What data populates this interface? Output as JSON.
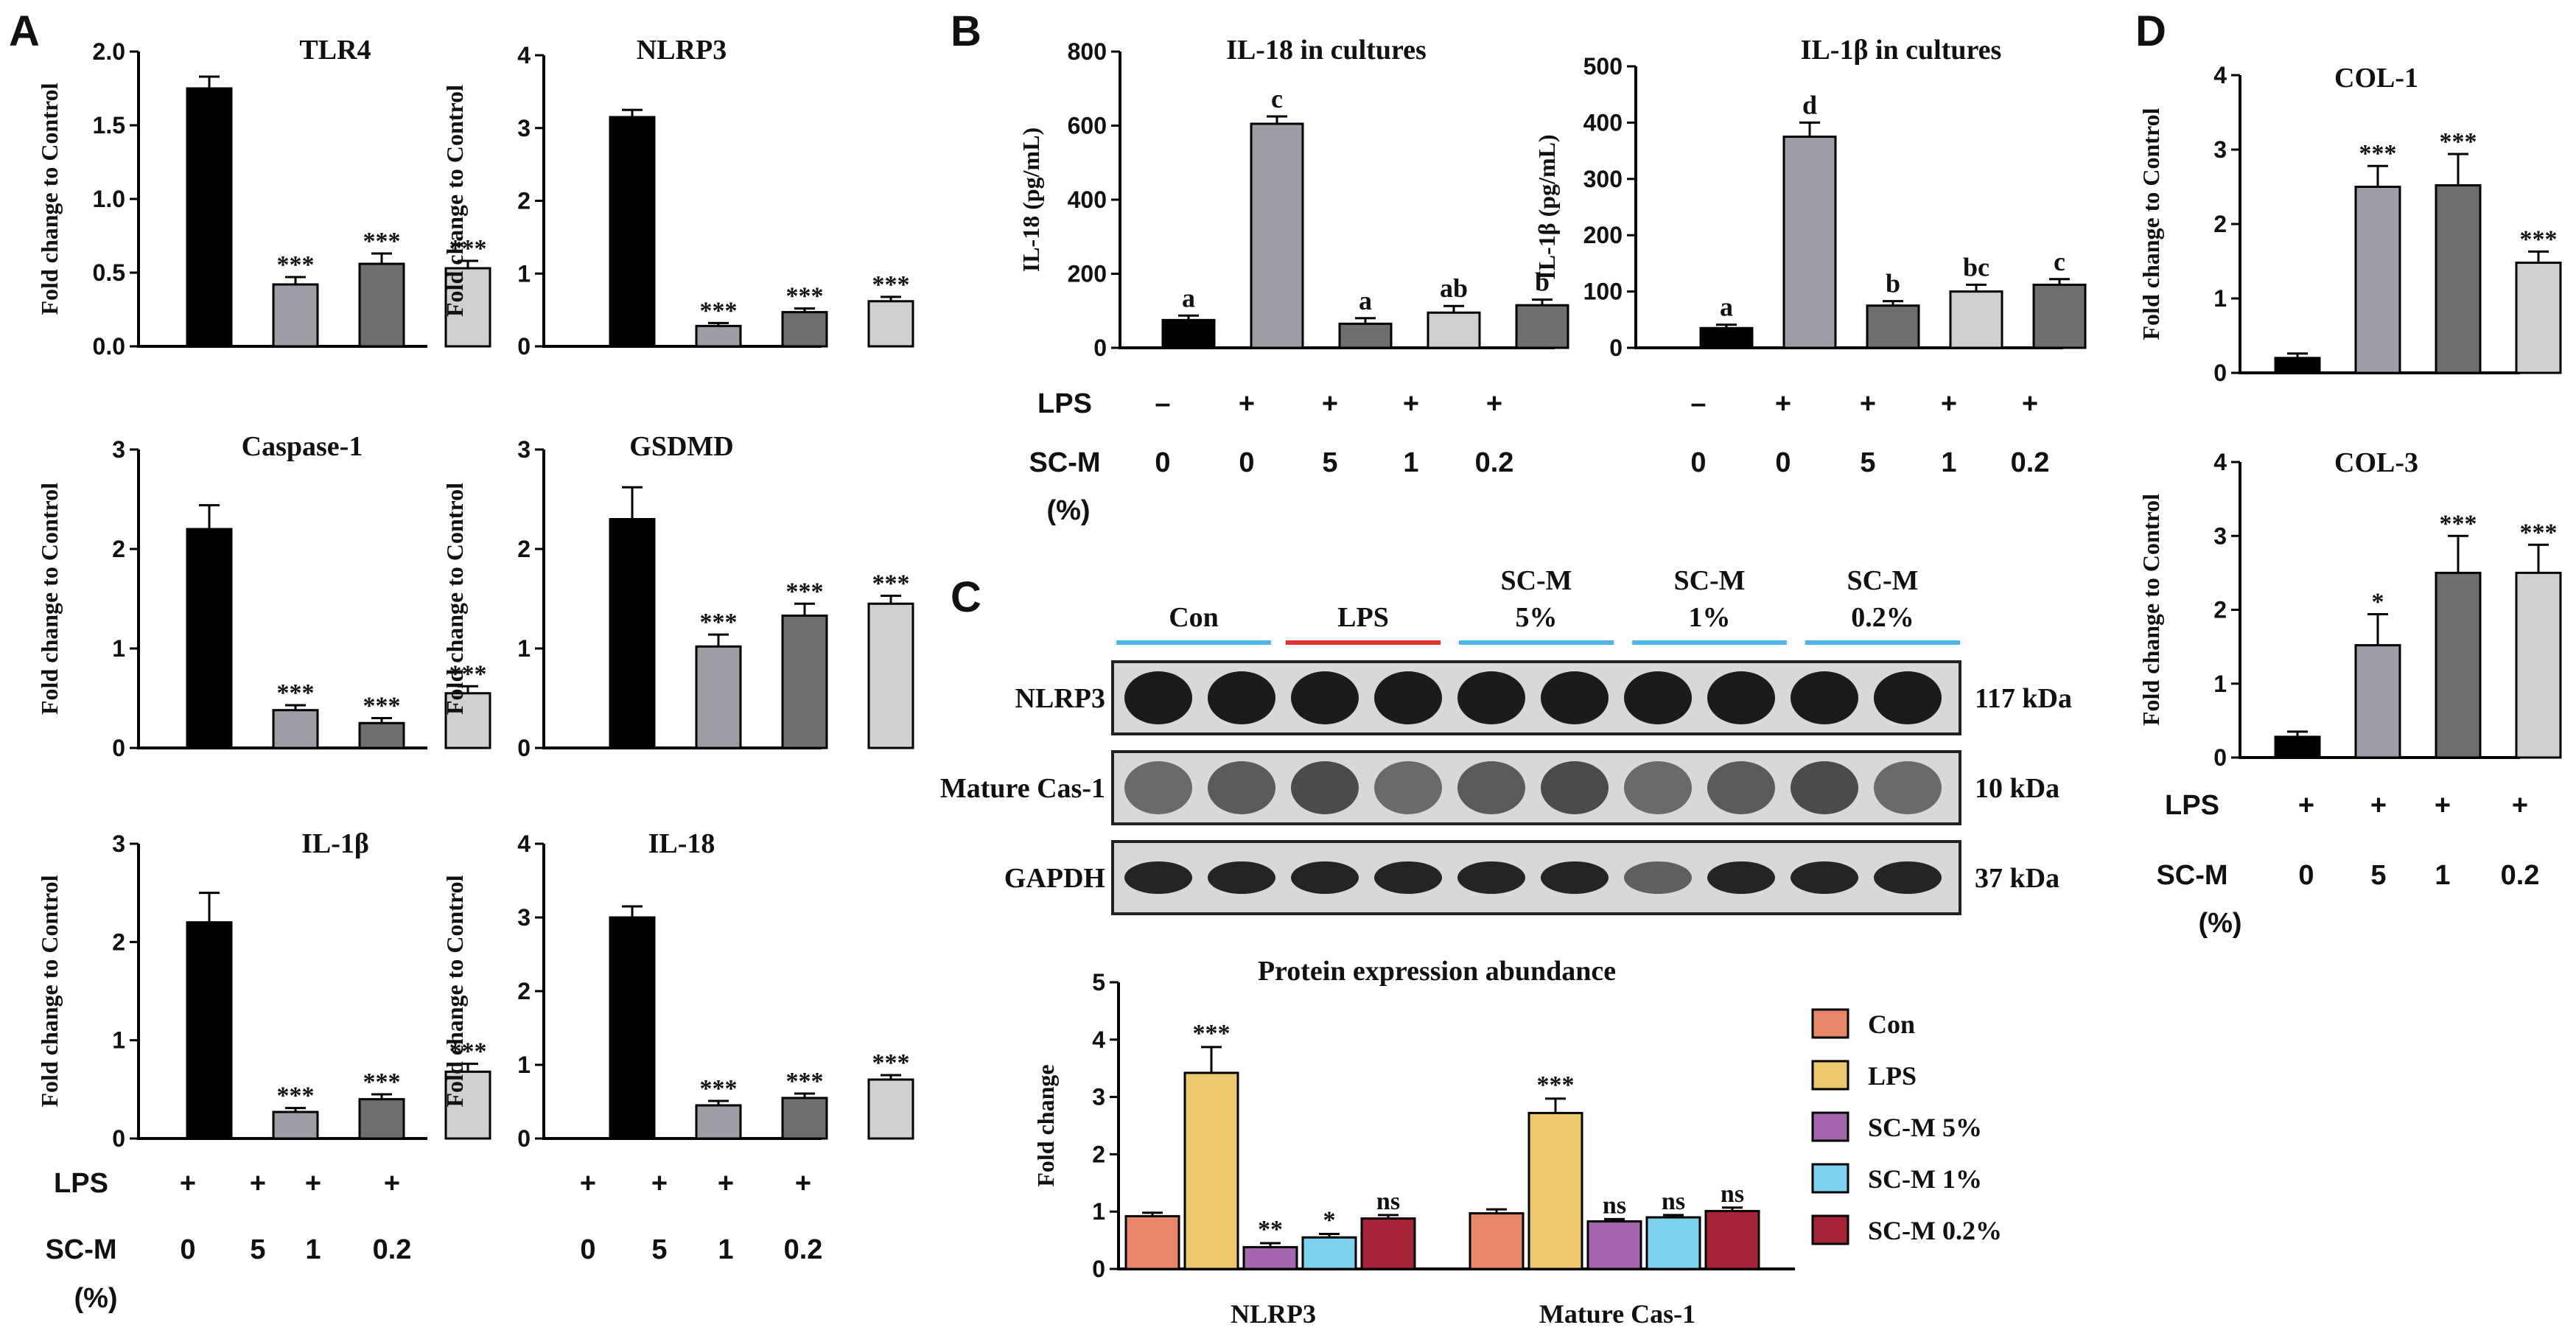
{
  "panels": {
    "A": "A",
    "B": "B",
    "C": "C",
    "D": "D"
  },
  "chart_data": [
    {
      "id": "A_TLR4",
      "type": "bar",
      "title": "TLR4",
      "ylabel": "Fold change to Control",
      "ylim": [
        0,
        2.0
      ],
      "yticks": [
        "0.0",
        "0.5",
        "1.0",
        "1.5",
        "2.0"
      ],
      "values": [
        1.75,
        0.42,
        0.56,
        0.53
      ],
      "errors": [
        0.08,
        0.05,
        0.07,
        0.05
      ],
      "annotations": [
        "",
        "***",
        "***",
        "***"
      ],
      "colors": [
        "#000000",
        "#9d9da5",
        "#6e6e6e",
        "#d0d0d0"
      ]
    },
    {
      "id": "A_NLRP3",
      "type": "bar",
      "title": "NLRP3",
      "ylabel": "Fold change to Control",
      "ylim": [
        0,
        4
      ],
      "yticks": [
        "0",
        "1",
        "2",
        "3",
        "4"
      ],
      "values": [
        3.15,
        0.28,
        0.47,
        0.62
      ],
      "errors": [
        0.1,
        0.04,
        0.05,
        0.06
      ],
      "annotations": [
        "",
        "***",
        "***",
        "***"
      ],
      "colors": [
        "#000000",
        "#9d9da5",
        "#6e6e6e",
        "#d0d0d0"
      ]
    },
    {
      "id": "A_Caspase1",
      "type": "bar",
      "title": "Caspase-1",
      "ylabel": "Fold change to Control",
      "ylim": [
        0,
        3
      ],
      "yticks": [
        "0",
        "1",
        "2",
        "3"
      ],
      "values": [
        2.2,
        0.38,
        0.25,
        0.55
      ],
      "errors": [
        0.24,
        0.05,
        0.05,
        0.07
      ],
      "annotations": [
        "",
        "***",
        "***",
        "***"
      ],
      "colors": [
        "#000000",
        "#9d9da5",
        "#6e6e6e",
        "#d0d0d0"
      ]
    },
    {
      "id": "A_GSDMD",
      "type": "bar",
      "title": "GSDMD",
      "ylabel": "Fold change to Control",
      "ylim": [
        0,
        3
      ],
      "yticks": [
        "0",
        "1",
        "2",
        "3"
      ],
      "values": [
        2.3,
        1.02,
        1.33,
        1.45
      ],
      "errors": [
        0.32,
        0.12,
        0.12,
        0.08
      ],
      "annotations": [
        "",
        "***",
        "***",
        "***"
      ],
      "colors": [
        "#000000",
        "#9d9da5",
        "#6e6e6e",
        "#d0d0d0"
      ]
    },
    {
      "id": "A_IL1b",
      "type": "bar",
      "title": "IL-1β",
      "ylabel": "Fold change to Control",
      "ylim": [
        0,
        3
      ],
      "yticks": [
        "0",
        "1",
        "2",
        "3"
      ],
      "values": [
        2.2,
        0.27,
        0.4,
        0.68
      ],
      "errors": [
        0.3,
        0.04,
        0.05,
        0.08
      ],
      "annotations": [
        "",
        "***",
        "***",
        "***"
      ],
      "colors": [
        "#000000",
        "#9d9da5",
        "#6e6e6e",
        "#d0d0d0"
      ]
    },
    {
      "id": "A_IL18",
      "type": "bar",
      "title": "IL-18",
      "ylabel": "Fold change to Control",
      "ylim": [
        0,
        4
      ],
      "yticks": [
        "0",
        "1",
        "2",
        "3",
        "4"
      ],
      "values": [
        3.0,
        0.45,
        0.55,
        0.8
      ],
      "errors": [
        0.15,
        0.06,
        0.06,
        0.06
      ],
      "annotations": [
        "",
        "***",
        "***",
        "***"
      ],
      "colors": [
        "#000000",
        "#9d9da5",
        "#6e6e6e",
        "#d0d0d0"
      ]
    },
    {
      "id": "B_IL18",
      "type": "bar",
      "title": "IL-18 in cultures",
      "ylabel": "IL-18 (pg/mL)",
      "ylim": [
        0,
        800
      ],
      "yticks": [
        "0",
        "200",
        "400",
        "600",
        "800"
      ],
      "values": [
        75,
        605,
        65,
        95,
        115
      ],
      "errors": [
        12,
        20,
        15,
        18,
        15
      ],
      "annotations": [
        "a",
        "c",
        "a",
        "ab",
        "b"
      ],
      "colors": [
        "#000000",
        "#9d9da5",
        "#6e6e6e",
        "#d0d0d0",
        "#6e6e6e"
      ]
    },
    {
      "id": "B_IL1b",
      "type": "bar",
      "title": "IL-1β in cultures",
      "ylabel": "IL-1β (pg/mL)",
      "ylim": [
        0,
        500
      ],
      "yticks": [
        "0",
        "100",
        "200",
        "300",
        "400",
        "500"
      ],
      "values": [
        35,
        375,
        75,
        100,
        112
      ],
      "errors": [
        6,
        25,
        8,
        12,
        10
      ],
      "annotations": [
        "a",
        "d",
        "b",
        "bc",
        "c"
      ],
      "colors": [
        "#000000",
        "#9d9da5",
        "#6e6e6e",
        "#d0d0d0",
        "#6e6e6e"
      ]
    },
    {
      "id": "C_protein",
      "type": "bar",
      "title": "Protein expression abundance",
      "ylabel": "Fold change",
      "ylim": [
        0,
        5
      ],
      "yticks": [
        "0",
        "1",
        "2",
        "3",
        "4",
        "5"
      ],
      "categories": [
        "NLRP3",
        "Mature Cas-1"
      ],
      "series": [
        {
          "name": "Con",
          "color": "#e8876a",
          "values": [
            0.92,
            0.97
          ],
          "errors": [
            0.06,
            0.07
          ],
          "annotations": [
            "",
            ""
          ]
        },
        {
          "name": "LPS",
          "color": "#ebc96c",
          "values": [
            3.42,
            2.72
          ],
          "errors": [
            0.45,
            0.25
          ],
          "annotations": [
            "***",
            "***"
          ]
        },
        {
          "name": "SC-M 5%",
          "color": "#a666ad",
          "values": [
            0.38,
            0.83
          ],
          "errors": [
            0.07,
            0.04
          ],
          "annotations": [
            "**",
            "ns"
          ]
        },
        {
          "name": "SC-M 1%",
          "color": "#7dd1ee",
          "values": [
            0.55,
            0.9
          ],
          "errors": [
            0.06,
            0.04
          ],
          "annotations": [
            "*",
            "ns"
          ]
        },
        {
          "name": "SC-M 0.2%",
          "color": "#a72436",
          "values": [
            0.88,
            1.01
          ],
          "errors": [
            0.06,
            0.06
          ],
          "annotations": [
            "ns",
            "ns"
          ]
        }
      ]
    },
    {
      "id": "D_COL1",
      "type": "bar",
      "title": "COL-1",
      "ylabel": "Fold change to Control",
      "ylim": [
        0,
        4
      ],
      "yticks": [
        "0",
        "1",
        "2",
        "3",
        "4"
      ],
      "values": [
        0.2,
        2.5,
        2.52,
        1.48
      ],
      "errors": [
        0.06,
        0.28,
        0.42,
        0.15
      ],
      "annotations": [
        "",
        "***",
        "***",
        "***"
      ],
      "colors": [
        "#000000",
        "#9d9da5",
        "#6e6e6e",
        "#d0d0d0"
      ]
    },
    {
      "id": "D_COL3",
      "type": "bar",
      "title": "COL-3",
      "ylabel": "Fold change to Control",
      "ylim": [
        0,
        4
      ],
      "yticks": [
        "0",
        "1",
        "2",
        "3",
        "4"
      ],
      "values": [
        0.28,
        1.52,
        2.5,
        2.5
      ],
      "errors": [
        0.07,
        0.42,
        0.5,
        0.38
      ],
      "annotations": [
        "",
        "*",
        "***",
        "***"
      ],
      "colors": [
        "#000000",
        "#9d9da5",
        "#6e6e6e",
        "#d0d0d0"
      ]
    }
  ],
  "conditions": {
    "lps_label": "LPS",
    "scm_label": "SC-M",
    "pct_label": "(%)",
    "plus": "+",
    "minus": "–",
    "lps_A": [
      "+",
      "+",
      "+",
      "+"
    ],
    "scm_A": [
      "0",
      "5",
      "1",
      "0.2"
    ],
    "lps_B": [
      "–",
      "+",
      "+",
      "+",
      "+"
    ],
    "scm_B": [
      "0",
      "0",
      "5",
      "1",
      "0.2"
    ],
    "lps_D": [
      "+",
      "+",
      "+",
      "+"
    ],
    "scm_D": [
      "0",
      "5",
      "1",
      "0.2"
    ]
  },
  "western_blot": {
    "groups": [
      {
        "label": "Con",
        "color": "#4db8e8"
      },
      {
        "label": "LPS",
        "color": "#e03030"
      },
      {
        "label": "SC-M\n5%",
        "line1": "SC-M",
        "line2": "5%",
        "color": "#4db8e8"
      },
      {
        "label": "SC-M\n1%",
        "line1": "SC-M",
        "line2": "1%",
        "color": "#4db8e8"
      },
      {
        "label": "SC-M\n0.2%",
        "line1": "SC-M",
        "line2": "0.2%",
        "color": "#4db8e8"
      }
    ],
    "rows": [
      {
        "name": "NLRP3",
        "kda": "117 kDa"
      },
      {
        "name": "Mature Cas-1",
        "kda": "10 kDa"
      },
      {
        "name": "GAPDH",
        "kda": "37 kDa"
      }
    ]
  }
}
